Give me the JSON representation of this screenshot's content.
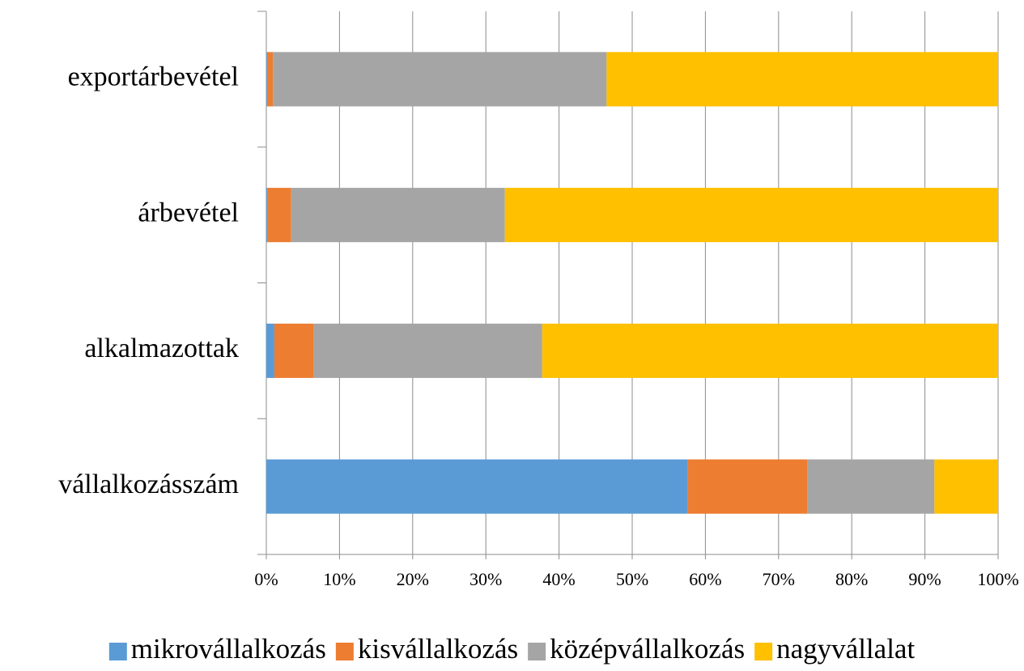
{
  "chart_data": {
    "type": "stacked_barh",
    "categories": [
      "vállalkozásszám",
      "alkalmazottak",
      "árbevétel",
      "exportárbevétel"
    ],
    "series": [
      {
        "name": "mikrovállalkozás",
        "color": "#5b9bd5",
        "values": [
          57.6,
          1.1,
          0.2,
          0.1
        ]
      },
      {
        "name": "kisvállalkozás",
        "color": "#ed7d31",
        "values": [
          16.3,
          5.4,
          3.2,
          0.8
        ]
      },
      {
        "name": "középvállalkozás",
        "color": "#a5a5a5",
        "values": [
          17.4,
          31.2,
          29.2,
          45.6
        ]
      },
      {
        "name": "nagyvállalat",
        "color": "#ffc000",
        "values": [
          8.7,
          62.3,
          67.4,
          53.5
        ]
      }
    ],
    "xlim": [
      0,
      100
    ],
    "xticks": [
      {
        "value": 0,
        "label": "0%"
      },
      {
        "value": 10,
        "label": "10%"
      },
      {
        "value": 20,
        "label": "20%"
      },
      {
        "value": 30,
        "label": "30%"
      },
      {
        "value": 40,
        "label": "40%"
      },
      {
        "value": 50,
        "label": "50%"
      },
      {
        "value": 60,
        "label": "60%"
      },
      {
        "value": 70,
        "label": "70%"
      },
      {
        "value": 80,
        "label": "80%"
      },
      {
        "value": 90,
        "label": "90%"
      },
      {
        "value": 100,
        "label": "100%"
      }
    ],
    "grid": true,
    "legend": "bottom"
  }
}
